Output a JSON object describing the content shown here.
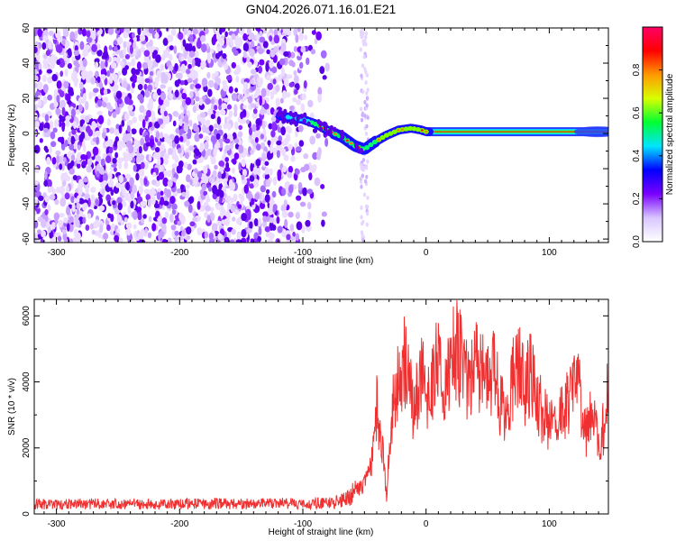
{
  "title": "GN04.2026.071.16.01.E21",
  "chart_data": [
    {
      "type": "heatmap",
      "name": "spectrogram",
      "xlabel": "Height of straight line (km)",
      "ylabel": "Frequency (Hz)",
      "xlim": [
        -318,
        148
      ],
      "ylim": [
        -62,
        60
      ],
      "xticks": [
        -300,
        -200,
        -100,
        0,
        100
      ],
      "xtick_labels": [
        "-300",
        "-200",
        "-100",
        "0",
        "100"
      ],
      "yticks": [
        -60,
        -40,
        -20,
        0,
        20,
        40,
        60
      ],
      "ytick_labels": [
        "-60",
        "-40",
        "-20",
        "0",
        "20",
        "40",
        "60"
      ],
      "noise_extent_km": [
        -318,
        -78
      ],
      "secondary_noise_column_km": -50,
      "signal_track": {
        "x": [
          -118,
          -100,
          -88,
          -78,
          -68,
          -58,
          -50,
          -42,
          -32,
          -22,
          -12,
          -4,
          0,
          30,
          60,
          90,
          120,
          148
        ],
        "freq": [
          10,
          8,
          5,
          1,
          -2,
          -7,
          -9,
          -5,
          -1,
          2,
          3,
          2,
          1,
          1,
          1,
          1,
          1,
          1
        ]
      },
      "colorbar": {
        "label": "Normalized spectral amplitude",
        "range": [
          0,
          1
        ],
        "ticks": [
          0.0,
          0.2,
          0.4,
          0.6,
          0.8
        ],
        "tick_labels": [
          "0.0",
          "0.2",
          "0.4",
          "0.6",
          "0.8"
        ],
        "colors": [
          "#ffffff",
          "#d8c6ff",
          "#7a00ff",
          "#0000ff",
          "#00e5ff",
          "#00ff33",
          "#d8ff00",
          "#ff9900",
          "#ff0000",
          "#ff0066"
        ]
      }
    },
    {
      "type": "line",
      "name": "snr",
      "xlabel": "Height of straight line (km)",
      "ylabel": "SNR (10 * v/v)",
      "xlim": [
        -318,
        148
      ],
      "ylim": [
        0,
        6500
      ],
      "xticks": [
        -300,
        -200,
        -100,
        0,
        100
      ],
      "xtick_labels": [
        "-300",
        "-200",
        "-100",
        "0",
        "100"
      ],
      "yticks": [
        0,
        2000,
        4000,
        6000
      ],
      "ytick_labels": [
        "0",
        "2000",
        "4000",
        "6000"
      ],
      "color": "#f03030",
      "series": [
        {
          "name": "SNR",
          "x": [
            -318,
            -300,
            -280,
            -260,
            -240,
            -220,
            -200,
            -180,
            -160,
            -140,
            -120,
            -100,
            -90,
            -80,
            -75,
            -70,
            -65,
            -60,
            -55,
            -50,
            -47,
            -44,
            -42,
            -40,
            -38,
            -35,
            -32,
            -30,
            -28,
            -25,
            -22,
            -20,
            -18,
            -15,
            -12,
            -10,
            -8,
            -5,
            -2,
            0,
            3,
            6,
            10,
            15,
            20,
            25,
            30,
            35,
            40,
            45,
            50,
            55,
            60,
            65,
            70,
            75,
            80,
            85,
            90,
            95,
            100,
            105,
            110,
            115,
            120,
            125,
            130,
            135,
            140,
            145,
            148
          ],
          "values": [
            300,
            280,
            320,
            300,
            310,
            290,
            300,
            320,
            310,
            300,
            330,
            310,
            330,
            320,
            350,
            380,
            450,
            600,
            750,
            900,
            1300,
            1700,
            2500,
            3200,
            2700,
            1800,
            600,
            1800,
            2900,
            3600,
            4200,
            4400,
            4700,
            4100,
            3600,
            3000,
            3400,
            4200,
            4000,
            3200,
            3600,
            4300,
            4500,
            3800,
            4700,
            5000,
            4400,
            4000,
            4700,
            4300,
            4000,
            4500,
            3300,
            3100,
            4000,
            4500,
            3800,
            4400,
            3600,
            3000,
            2800,
            2500,
            3000,
            3300,
            3900,
            3600,
            2500,
            3000,
            2200,
            2700,
            4000
          ]
        }
      ]
    }
  ]
}
